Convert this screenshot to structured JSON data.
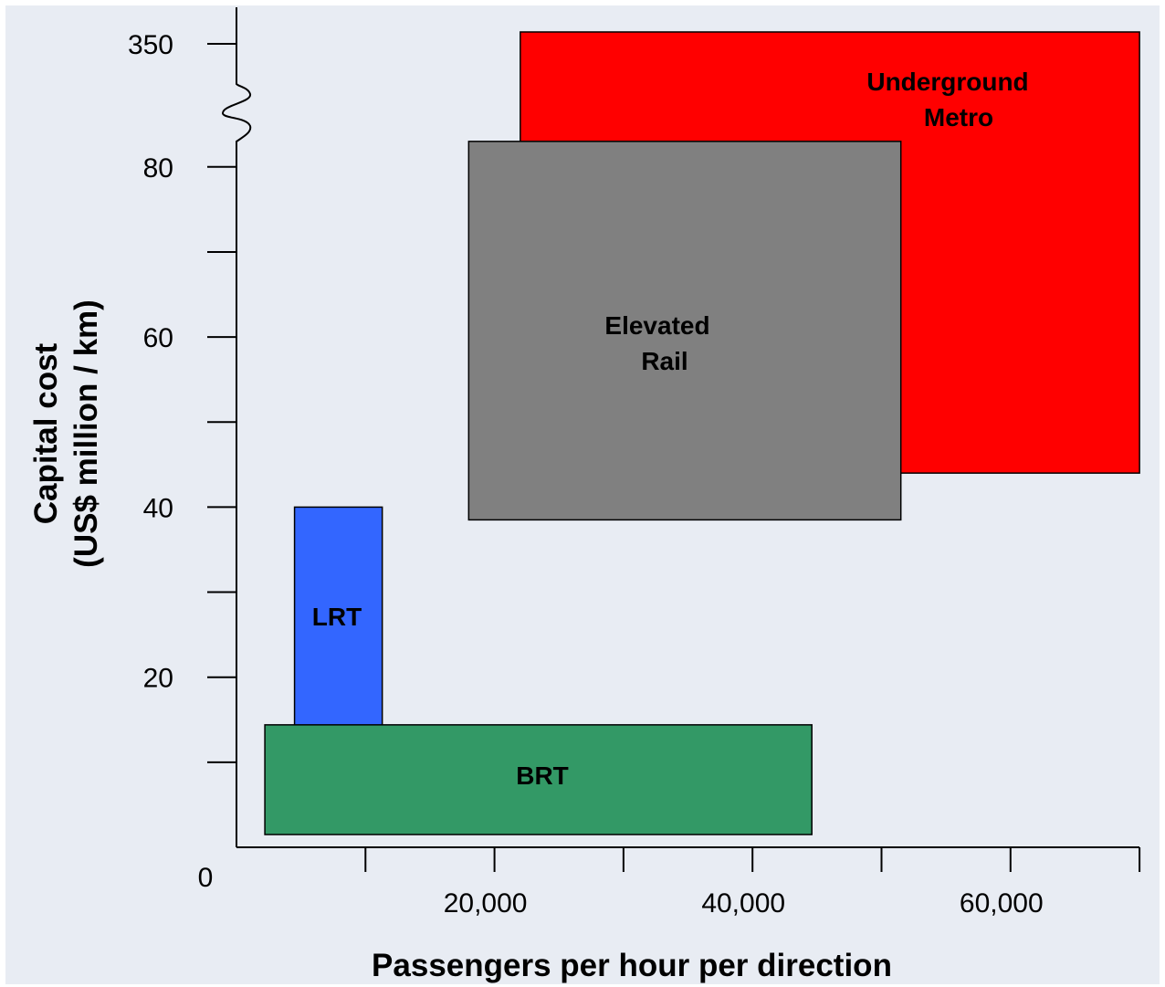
{
  "chart_data": {
    "type": "range-box",
    "xlabel": "Passengers per hour per direction",
    "ylabel_line1": "Capital cost",
    "ylabel_line2": "(US$ million / km)",
    "origin_label": "0",
    "x_ticks": [
      {
        "value": 10000,
        "label": ""
      },
      {
        "value": 20000,
        "label": "20,000"
      },
      {
        "value": 30000,
        "label": ""
      },
      {
        "value": 40000,
        "label": "40,000"
      },
      {
        "value": 50000,
        "label": ""
      },
      {
        "value": 60000,
        "label": "60,000"
      },
      {
        "value": 70000,
        "label": ""
      }
    ],
    "y_ticks": [
      {
        "value": 10,
        "label": ""
      },
      {
        "value": 20,
        "label": "20"
      },
      {
        "value": 30,
        "label": ""
      },
      {
        "value": 40,
        "label": "40"
      },
      {
        "value": 50,
        "label": ""
      },
      {
        "value": 60,
        "label": "60"
      },
      {
        "value": 70,
        "label": ""
      },
      {
        "value": 80,
        "label": "80"
      }
    ],
    "y_break": {
      "top_label": "350",
      "between": [
        80,
        350
      ]
    },
    "xlim": [
      0,
      70000
    ],
    "ylim": [
      0,
      80
    ],
    "grid": false,
    "series": [
      {
        "name": "Underground Metro",
        "label_lines": [
          "Underground",
          "Metro"
        ],
        "x_min": 22000,
        "x_max": 70000,
        "y_min": 44,
        "y_max": 350,
        "color": "#ff0000"
      },
      {
        "name": "Elevated Rail",
        "label_lines": [
          "Elevated",
          "Rail"
        ],
        "x_min": 18000,
        "x_max": 51500,
        "y_min": 38.5,
        "y_max": 83,
        "color": "#808080"
      },
      {
        "name": "LRT",
        "label_lines": [
          "LRT"
        ],
        "x_min": 4500,
        "x_max": 11300,
        "y_min": 13,
        "y_max": 40,
        "color": "#3366ff"
      },
      {
        "name": "BRT",
        "label_lines": [
          "BRT"
        ],
        "x_min": 2200,
        "x_max": 44600,
        "y_min": 1.5,
        "y_max": 14.4,
        "color": "#339966"
      }
    ]
  },
  "colors": {
    "plot_background": "#e8ecf3",
    "axis": "#000000"
  }
}
